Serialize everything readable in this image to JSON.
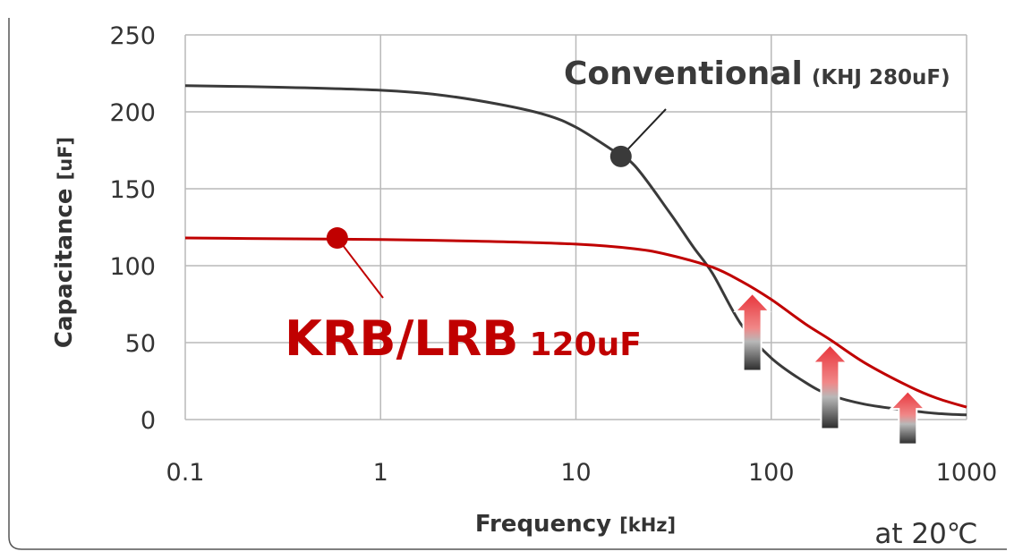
{
  "chart_data": {
    "type": "line",
    "xscale": "log",
    "xlim": [
      0.1,
      1000
    ],
    "ylim": [
      0,
      250
    ],
    "grid": true,
    "xticks": [
      "0.1",
      "1",
      "10",
      "100",
      "1000"
    ],
    "yticks": [
      "0",
      "50",
      "100",
      "150",
      "200",
      "250"
    ],
    "xlabel": {
      "main": "Frequency",
      "unit": "[kHz]"
    },
    "ylabel": {
      "main": "Capacitance",
      "unit": "[uF]"
    },
    "note": "at 20℃",
    "series": [
      {
        "name": "Conventional (KHJ 280uF)",
        "label_main": "Conventional",
        "label_sub": "(KHJ 280uF)",
        "color": "#3a3a3a",
        "x": [
          0.1,
          0.3,
          1,
          2,
          4,
          7,
          10,
          15,
          20,
          30,
          40,
          50,
          70,
          100,
          150,
          200,
          300,
          500,
          700,
          1000
        ],
        "y": [
          217,
          216,
          214,
          211,
          205,
          198,
          190,
          176,
          165,
          135,
          112,
          95,
          62,
          40,
          24,
          16,
          10,
          6,
          4,
          3
        ],
        "marker_x": 17,
        "marker_y": 171
      },
      {
        "name": "KRB/LRB 120uF",
        "label_main": "KRB/LRB",
        "label_sub": "120uF",
        "color": "#c00000",
        "x": [
          0.1,
          0.3,
          1,
          3,
          10,
          20,
          30,
          50,
          70,
          100,
          150,
          200,
          300,
          500,
          700,
          1000
        ],
        "y": [
          118,
          117.5,
          117,
          116,
          114,
          111,
          107,
          99,
          90,
          78,
          62,
          52,
          37,
          22,
          14,
          8
        ],
        "marker_x": 0.6,
        "marker_y": 118
      }
    ],
    "arrows_x": [
      80,
      200,
      500
    ]
  }
}
